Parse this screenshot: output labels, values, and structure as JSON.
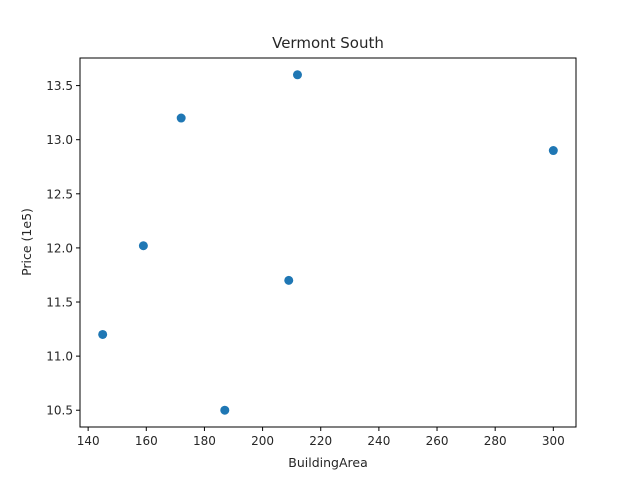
{
  "chart_data": {
    "type": "scatter",
    "title": "Vermont South",
    "xlabel": "BuildingArea",
    "ylabel": "Price (1e5)",
    "xlim": [
      137.2,
      307.8
    ],
    "ylim": [
      10.345,
      13.755
    ],
    "xticks": [
      140,
      160,
      180,
      200,
      220,
      240,
      260,
      280,
      300
    ],
    "yticks": [
      10.5,
      11.0,
      11.5,
      12.0,
      12.5,
      13.0,
      13.5
    ],
    "xtick_labels": [
      "140",
      "160",
      "180",
      "200",
      "220",
      "240",
      "260",
      "280",
      "300"
    ],
    "ytick_labels": [
      "10.5",
      "11.0",
      "11.5",
      "12.0",
      "12.5",
      "13.0",
      "13.5"
    ],
    "grid": false,
    "legend": "none",
    "series": [
      {
        "color": "#1f77b4",
        "points": [
          {
            "x": 145,
            "y": 11.2
          },
          {
            "x": 159,
            "y": 12.02
          },
          {
            "x": 172,
            "y": 13.2
          },
          {
            "x": 187,
            "y": 10.5
          },
          {
            "x": 209,
            "y": 11.7
          },
          {
            "x": 212,
            "y": 13.6
          },
          {
            "x": 300,
            "y": 12.9
          }
        ]
      }
    ]
  }
}
